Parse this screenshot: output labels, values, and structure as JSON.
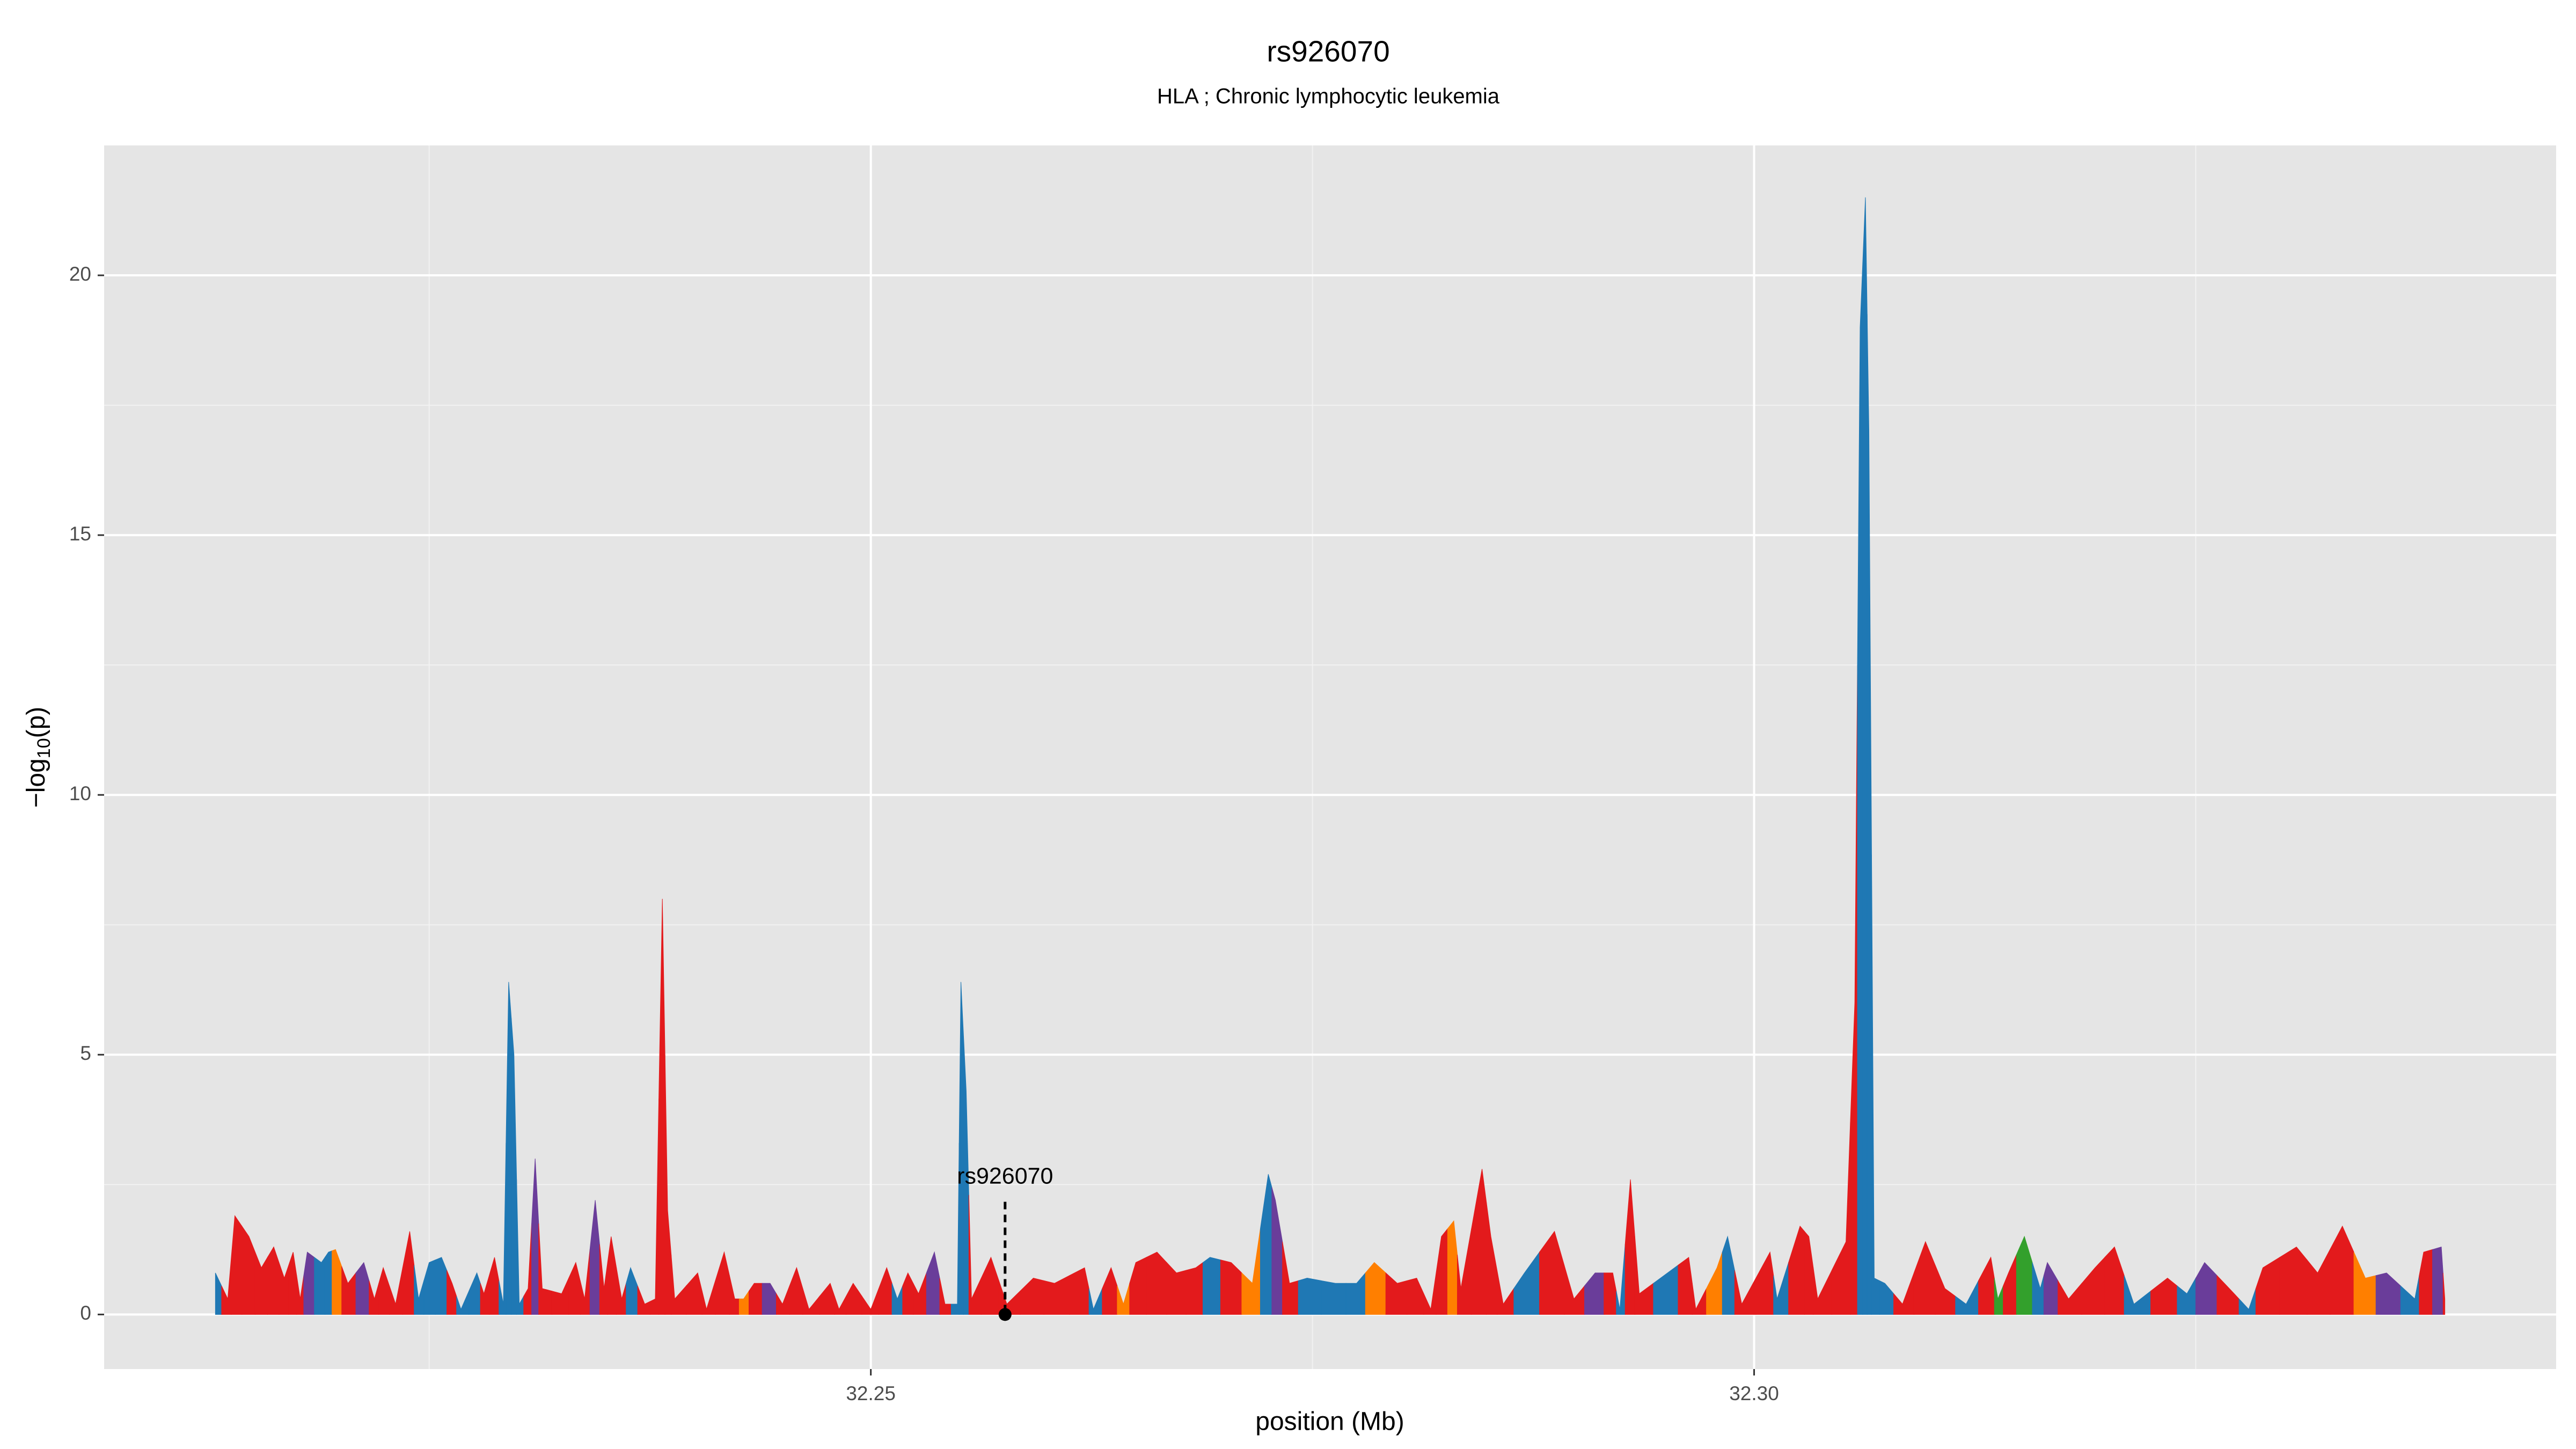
{
  "chart_data": {
    "type": "area",
    "title": "rs926070",
    "subtitle": "HLA ; Chronic lymphocytic leukemia",
    "x_label": "position (Mb)",
    "y_label_parts": [
      "−log",
      "10",
      "(p)"
    ],
    "xlim": [
      32.2066,
      32.3454
    ],
    "ylim": [
      -1.05,
      22.5
    ],
    "xticks": [
      32.25,
      {
        "value": 32.3,
        "label": "32.30"
      }
    ],
    "yticks": [
      0,
      5,
      10,
      15,
      20
    ],
    "xminor": [
      32.225,
      32.275,
      32.325
    ],
    "yminor": [
      2.5,
      7.5,
      12.5,
      17.5
    ],
    "grid": true,
    "x": [
      32.2129,
      32.2136,
      32.214,
      32.2148,
      32.2155,
      32.2162,
      32.2168,
      32.2173,
      32.2177,
      32.2181,
      32.2189,
      32.2193,
      32.2197,
      32.2204,
      32.2213,
      32.2219,
      32.2224,
      32.2231,
      32.2239,
      32.2244,
      32.225,
      32.2257,
      32.2263,
      32.2268,
      32.2277,
      32.2281,
      32.2287,
      32.2292,
      32.2295,
      32.2298,
      32.2301,
      32.2306,
      32.231,
      32.2314,
      32.2325,
      32.2333,
      32.2338,
      32.2344,
      32.2349,
      32.2353,
      32.2359,
      32.2364,
      32.2372,
      32.2378,
      32.2382,
      32.2385,
      32.2389,
      32.2402,
      32.2407,
      32.2417,
      32.2423,
      32.2428,
      32.2434,
      32.2443,
      32.245,
      32.2458,
      32.2465,
      32.2477,
      32.2482,
      32.249,
      32.25,
      32.2509,
      32.2515,
      32.2521,
      32.2527,
      32.2536,
      32.2542,
      32.2549,
      32.2551,
      32.2554,
      32.2557,
      32.2568,
      32.2577,
      32.2592,
      32.2604,
      32.2621,
      32.2626,
      32.2636,
      32.2643,
      32.265,
      32.2662,
      32.2673,
      32.2684,
      32.2692,
      32.2704,
      32.2716,
      32.2725,
      32.2729,
      32.2737,
      32.2747,
      32.2763,
      32.2775,
      32.2785,
      32.2798,
      32.2809,
      32.2817,
      32.2823,
      32.283,
      32.2834,
      32.2846,
      32.2851,
      32.2858,
      32.287,
      32.2887,
      32.2898,
      32.291,
      32.292,
      32.2924,
      32.293,
      32.2935,
      32.2951,
      32.2963,
      32.2967,
      32.2979,
      32.2985,
      32.2993,
      32.3009,
      32.3013,
      32.3026,
      32.3031,
      32.3036,
      32.3052,
      32.3057,
      32.306,
      32.3063,
      32.3065,
      32.3068,
      32.3074,
      32.3084,
      32.3097,
      32.3108,
      32.312,
      32.3134,
      32.3138,
      32.3144,
      32.3153,
      32.3162,
      32.3166,
      32.3178,
      32.3193,
      32.3204,
      32.3215,
      32.3234,
      32.3245,
      32.3255,
      32.3269,
      32.328,
      32.3288,
      32.3307,
      32.3319,
      32.3333,
      32.3346,
      32.3358,
      32.3374,
      32.3379,
      32.3389,
      32.3391
    ],
    "values": [
      0.8,
      0.3,
      1.9,
      1.5,
      0.9,
      1.3,
      0.7,
      1.2,
      0.3,
      1.2,
      1.0,
      1.2,
      1.25,
      0.6,
      1.0,
      0.3,
      0.9,
      0.2,
      1.6,
      0.3,
      1.0,
      1.1,
      0.6,
      0.1,
      0.8,
      0.4,
      1.1,
      0.2,
      6.4,
      5.0,
      0.2,
      0.5,
      3.0,
      0.5,
      0.4,
      1.0,
      0.3,
      2.2,
      0.5,
      1.5,
      0.3,
      0.9,
      0.2,
      0.3,
      8.0,
      2.0,
      0.3,
      0.8,
      0.1,
      1.2,
      0.3,
      0.3,
      0.6,
      0.6,
      0.2,
      0.9,
      0.1,
      0.6,
      0.1,
      0.6,
      0.1,
      0.9,
      0.3,
      0.8,
      0.4,
      1.2,
      0.2,
      0.2,
      6.4,
      4.3,
      0.3,
      1.1,
      0.2,
      0.7,
      0.6,
      0.9,
      0.1,
      0.9,
      0.2,
      1.0,
      1.2,
      0.8,
      0.9,
      1.1,
      1.0,
      0.6,
      2.7,
      2.2,
      0.6,
      0.7,
      0.6,
      0.6,
      1.0,
      0.6,
      0.7,
      0.1,
      1.5,
      1.8,
      0.5,
      2.8,
      1.5,
      0.2,
      0.8,
      1.6,
      0.3,
      0.8,
      0.8,
      0.1,
      2.6,
      0.4,
      0.8,
      1.1,
      0.1,
      0.9,
      1.5,
      0.2,
      1.2,
      0.3,
      1.7,
      1.5,
      0.3,
      1.4,
      6.0,
      19.0,
      21.5,
      17.0,
      0.7,
      0.6,
      0.2,
      1.4,
      0.5,
      0.2,
      1.1,
      0.3,
      0.8,
      1.5,
      0.5,
      1.0,
      0.3,
      0.9,
      1.3,
      0.2,
      0.7,
      0.4,
      1.0,
      0.5,
      0.1,
      0.9,
      1.3,
      0.8,
      1.7,
      0.7,
      0.8,
      0.3,
      1.2,
      1.3,
      0.3
    ],
    "colors": [
      "#1f78b4",
      "#e31a1c",
      "#e31a1c",
      "#e31a1c",
      "#e31a1c",
      "#e31a1c",
      "#e31a1c",
      "#e31a1c",
      "#e31a1c",
      "#6a3d9a",
      "#1f78b4",
      "#1f78b4",
      "#ff7f00",
      "#e31a1c",
      "#6a3d9a",
      "#e31a1c",
      "#e31a1c",
      "#e31a1c",
      "#e31a1c",
      "#1f78b4",
      "#1f78b4",
      "#1f78b4",
      "#e31a1c",
      "#1f78b4",
      "#1f78b4",
      "#e31a1c",
      "#e31a1c",
      "#1f78b4",
      "#1f78b4",
      "#1f78b4",
      "#1f78b4",
      "#e31a1c",
      "#6a3d9a",
      "#e31a1c",
      "#e31a1c",
      "#e31a1c",
      "#e31a1c",
      "#6a3d9a",
      "#e31a1c",
      "#e31a1c",
      "#e31a1c",
      "#1f78b4",
      "#e31a1c",
      "#e31a1c",
      "#e31a1c",
      "#e31a1c",
      "#e31a1c",
      "#e31a1c",
      "#e31a1c",
      "#e31a1c",
      "#e31a1c",
      "#ff7f00",
      "#e31a1c",
      "#6a3d9a",
      "#e31a1c",
      "#e31a1c",
      "#e31a1c",
      "#e31a1c",
      "#e31a1c",
      "#e31a1c",
      "#e31a1c",
      "#e31a1c",
      "#1f78b4",
      "#e31a1c",
      "#e31a1c",
      "#6a3d9a",
      "#e31a1c",
      "#1f78b4",
      "#1f78b4",
      "#1f78b4",
      "#e31a1c",
      "#e31a1c",
      "#e31a1c",
      "#e31a1c",
      "#e31a1c",
      "#e31a1c",
      "#1f78b4",
      "#e31a1c",
      "#ff7f00",
      "#e31a1c",
      "#e31a1c",
      "#e31a1c",
      "#e31a1c",
      "#1f78b4",
      "#e31a1c",
      "#ff7f00",
      "#1f78b4",
      "#6a3d9a",
      "#e31a1c",
      "#1f78b4",
      "#1f78b4",
      "#1f78b4",
      "#ff7f00",
      "#e31a1c",
      "#e31a1c",
      "#e31a1c",
      "#e31a1c",
      "#ff7f00",
      "#e31a1c",
      "#e31a1c",
      "#e31a1c",
      "#e31a1c",
      "#1f78b4",
      "#e31a1c",
      "#e31a1c",
      "#6a3d9a",
      "#e31a1c",
      "#1f78b4",
      "#e31a1c",
      "#e31a1c",
      "#1f78b4",
      "#e31a1c",
      "#e31a1c",
      "#ff7f00",
      "#1f78b4",
      "#e31a1c",
      "#e31a1c",
      "#1f78b4",
      "#e31a1c",
      "#e31a1c",
      "#e31a1c",
      "#e31a1c",
      "#e31a1c",
      "#1f78b4",
      "#1f78b4",
      "#1f78b4",
      "#1f78b4",
      "#1f78b4",
      "#e31a1c",
      "#e31a1c",
      "#e31a1c",
      "#1f78b4",
      "#e31a1c",
      "#33a02c",
      "#e31a1c",
      "#33a02c",
      "#1f78b4",
      "#6a3d9a",
      "#e31a1c",
      "#e31a1c",
      "#e31a1c",
      "#1f78b4",
      "#e31a1c",
      "#1f78b4",
      "#6a3d9a",
      "#e31a1c",
      "#1f78b4",
      "#e31a1c",
      "#e31a1c",
      "#e31a1c",
      "#e31a1c",
      "#ff7f00",
      "#6a3d9a",
      "#1f78b4",
      "#e31a1c",
      "#6a3d9a",
      "#e31a1c"
    ],
    "annotation": {
      "text": "rs926070",
      "x": 32.2576,
      "y": 0
    }
  }
}
